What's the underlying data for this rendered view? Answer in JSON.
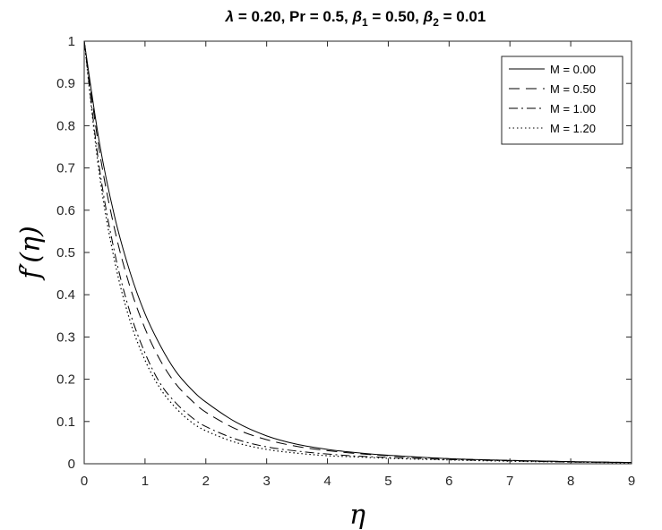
{
  "chart_data": {
    "type": "line",
    "title": {
      "lambda_sym": "λ",
      "lambda_val": " = 0.20, Pr = 0.5, ",
      "beta_sym": "β",
      "beta1_sub": "1",
      "beta1_val": " = 0.50, ",
      "beta2_sub": "2",
      "beta2_val": " = 0.01"
    },
    "xlabel": "η",
    "ylabel": "f′(η)",
    "xlim": [
      0,
      9
    ],
    "ylim": [
      0,
      1
    ],
    "xticks": [
      "0",
      "1",
      "2",
      "3",
      "4",
      "5",
      "6",
      "7",
      "8",
      "9"
    ],
    "yticks": [
      "0",
      "0.1",
      "0.2",
      "0.3",
      "0.4",
      "0.5",
      "0.6",
      "0.7",
      "0.8",
      "0.9",
      "1"
    ],
    "grid": false,
    "legend_position": "top-right",
    "x": [
      0,
      0.25,
      0.5,
      0.75,
      1,
      1.25,
      1.5,
      1.75,
      2,
      2.5,
      3,
      3.5,
      4,
      4.5,
      5,
      6,
      7,
      8,
      9
    ],
    "series": [
      {
        "name": "M = 0.00",
        "style": "solid",
        "values": [
          1,
          0.76,
          0.585,
          0.455,
          0.355,
          0.28,
          0.22,
          0.178,
          0.146,
          0.098,
          0.066,
          0.046,
          0.034,
          0.026,
          0.02,
          0.012,
          0.008,
          0.005,
          0.003
        ]
      },
      {
        "name": "M = 0.50",
        "style": "dashed",
        "values": [
          1,
          0.74,
          0.555,
          0.42,
          0.32,
          0.245,
          0.19,
          0.152,
          0.122,
          0.082,
          0.057,
          0.041,
          0.031,
          0.024,
          0.019,
          0.012,
          0.008,
          0.005,
          0.003
        ]
      },
      {
        "name": "M = 1.00",
        "style": "dashdot",
        "values": [
          1,
          0.7,
          0.5,
          0.36,
          0.262,
          0.19,
          0.145,
          0.112,
          0.088,
          0.058,
          0.04,
          0.03,
          0.023,
          0.018,
          0.015,
          0.01,
          0.007,
          0.004,
          0.003
        ]
      },
      {
        "name": "M = 1.20",
        "style": "dotted",
        "values": [
          1,
          0.685,
          0.48,
          0.34,
          0.245,
          0.178,
          0.133,
          0.1,
          0.078,
          0.05,
          0.034,
          0.025,
          0.019,
          0.016,
          0.013,
          0.009,
          0.006,
          0.004,
          0.002
        ]
      }
    ]
  }
}
